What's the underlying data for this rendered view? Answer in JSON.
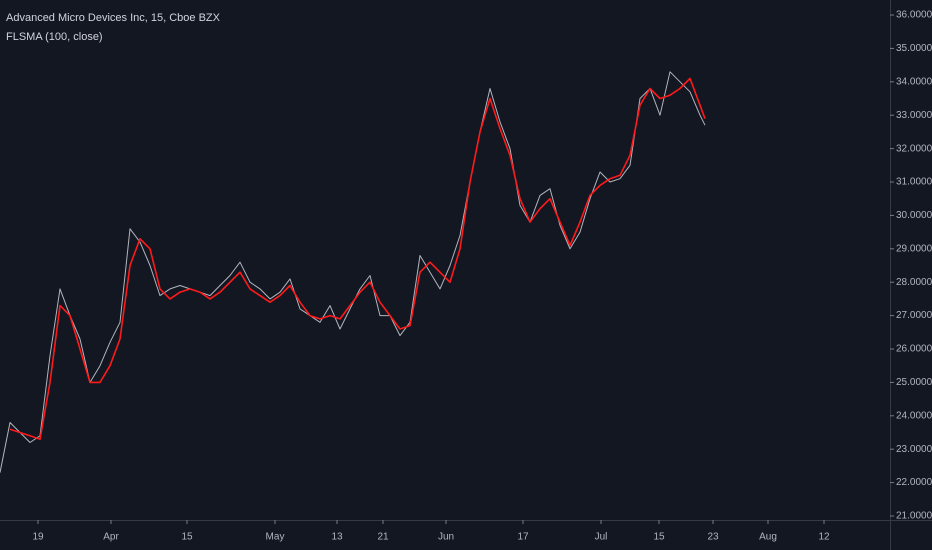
{
  "chart_data": {
    "type": "line",
    "title": "Advanced Micro Devices Inc, 15, Cboe BZX",
    "x": [
      0,
      10,
      20,
      30,
      40,
      50,
      60,
      70,
      80,
      90,
      100,
      110,
      120,
      130,
      140,
      150,
      160,
      170,
      180,
      190,
      200,
      210,
      220,
      230,
      240,
      250,
      260,
      270,
      280,
      290,
      300,
      310,
      320,
      330,
      340,
      350,
      360,
      370,
      380,
      390,
      400,
      410,
      420,
      430,
      440,
      450,
      460,
      470,
      480,
      490,
      500,
      510,
      520,
      530,
      540,
      550,
      560,
      570,
      580,
      590,
      600,
      610,
      620,
      630,
      640,
      650,
      660,
      670,
      680,
      690,
      700,
      705
    ],
    "series": [
      {
        "color": "#b2b5be",
        "values": [
          22.3,
          23.8,
          23.5,
          23.2,
          23.4,
          25.8,
          27.8,
          27.0,
          26.3,
          25.0,
          25.5,
          26.2,
          26.8,
          29.6,
          29.2,
          28.5,
          27.6,
          27.8,
          27.9,
          27.8,
          27.7,
          27.6,
          27.9,
          28.2,
          28.6,
          28.0,
          27.8,
          27.5,
          27.7,
          28.1,
          27.2,
          27.0,
          26.8,
          27.3,
          26.6,
          27.2,
          27.8,
          28.2,
          27.0,
          27.0,
          26.4,
          26.8,
          28.8,
          28.3,
          27.8,
          28.5,
          29.4,
          31.0,
          32.5,
          33.8,
          32.8,
          32.0,
          30.3,
          29.8,
          30.6,
          30.8,
          29.7,
          29.0,
          29.5,
          30.5,
          31.3,
          31.0,
          31.1,
          31.5,
          33.5,
          33.8,
          33.0,
          34.3,
          34.0,
          33.7,
          33.0,
          32.7
        ]
      },
      {
        "name": "FLSMA (100, close)",
        "color": "#ff1a1a",
        "values": [
          null,
          23.6,
          23.5,
          23.4,
          23.3,
          25.0,
          27.3,
          27.0,
          26.0,
          25.0,
          25.0,
          25.5,
          26.3,
          28.5,
          29.3,
          29.0,
          27.8,
          27.5,
          27.7,
          27.8,
          27.7,
          27.5,
          27.7,
          28.0,
          28.3,
          27.8,
          27.6,
          27.4,
          27.6,
          27.9,
          27.4,
          27.0,
          26.9,
          27.0,
          26.9,
          27.3,
          27.7,
          28.0,
          27.4,
          27.0,
          26.6,
          26.7,
          28.3,
          28.6,
          28.3,
          28.0,
          29.0,
          31.0,
          32.5,
          33.5,
          32.6,
          31.8,
          30.5,
          29.8,
          30.2,
          30.5,
          29.8,
          29.1,
          29.8,
          30.6,
          30.9,
          31.1,
          31.2,
          31.8,
          33.3,
          33.8,
          33.5,
          33.6,
          33.8,
          34.1,
          33.3,
          32.9
        ]
      }
    ],
    "xlim": [
      0,
      890
    ],
    "xticks": [
      {
        "value": 38,
        "label": "19"
      },
      {
        "value": 111,
        "label": "Apr"
      },
      {
        "value": 187,
        "label": "15"
      },
      {
        "value": 275,
        "label": "May"
      },
      {
        "value": 337,
        "label": "13"
      },
      {
        "value": 383,
        "label": "21"
      },
      {
        "value": 446,
        "label": "Jun"
      },
      {
        "value": 523,
        "label": "17"
      },
      {
        "value": 601,
        "label": "Jul"
      },
      {
        "value": 659,
        "label": "15"
      },
      {
        "value": 713,
        "label": "23"
      },
      {
        "value": 768,
        "label": "Aug"
      },
      {
        "value": 824,
        "label": "12"
      }
    ],
    "ylim": [
      20.88,
      36.45
    ],
    "yticks": [
      {
        "value": 21,
        "label": "21.0000"
      },
      {
        "value": 22,
        "label": "22.0000"
      },
      {
        "value": 23,
        "label": "23.0000"
      },
      {
        "value": 24,
        "label": "24.0000"
      },
      {
        "value": 25,
        "label": "25.0000"
      },
      {
        "value": 26,
        "label": "26.0000"
      },
      {
        "value": 27,
        "label": "27.0000"
      },
      {
        "value": 28,
        "label": "28.0000"
      },
      {
        "value": 29,
        "label": "29.0000"
      },
      {
        "value": 30,
        "label": "30.0000"
      },
      {
        "value": 31,
        "label": "31.0000"
      },
      {
        "value": 32,
        "label": "32.0000"
      },
      {
        "value": 33,
        "label": "33.0000"
      },
      {
        "value": 34,
        "label": "34.0000"
      },
      {
        "value": 35,
        "label": "35.0000"
      },
      {
        "value": 36,
        "label": "36.0000"
      }
    ],
    "grid": false
  }
}
